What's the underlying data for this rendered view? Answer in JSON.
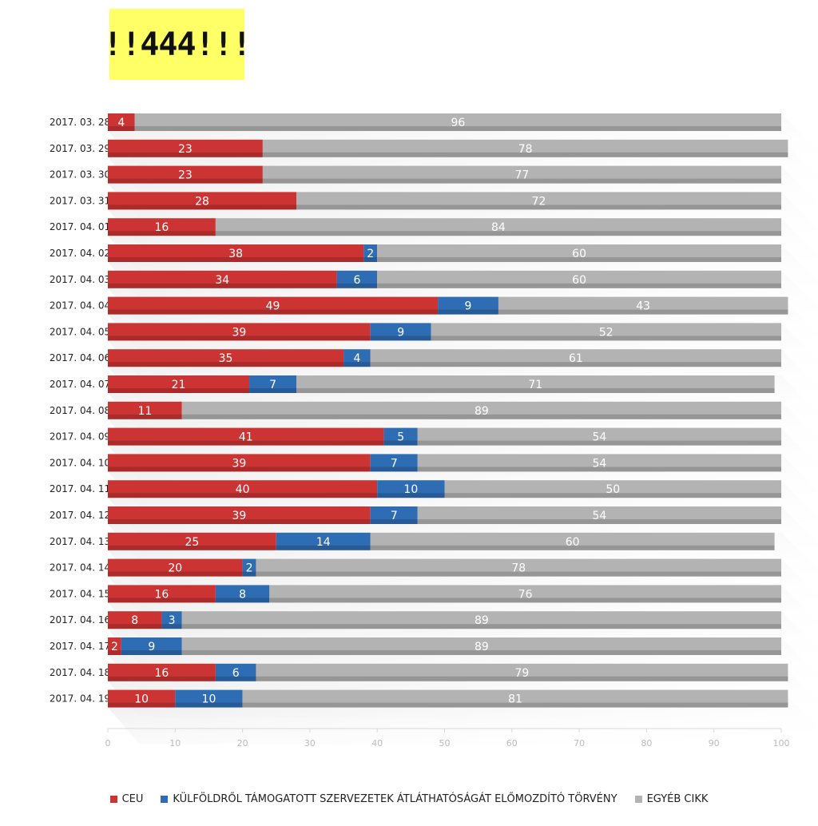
{
  "logo": {
    "text": "!!444!!!"
  },
  "colors": {
    "ceu": "#cc3333",
    "law": "#2e6db4",
    "other": "#b3b3b3"
  },
  "legend": [
    {
      "label": "CEU",
      "color": "#cc3333"
    },
    {
      "label": "KÜLFÖLDRŐL TÁMOGATOTT SZERVEZETEK ÁTLÁTHATÓSÁGÁT ELŐMOZDÍTÓ TÖRVÉNY",
      "color": "#2e6db4"
    },
    {
      "label": "EGYÉB CIKK",
      "color": "#b3b3b3"
    }
  ],
  "chart_data": {
    "type": "bar",
    "orientation": "horizontal",
    "stacked": true,
    "categories": [
      "2017. 03. 28.",
      "2017. 03. 29.",
      "2017. 03. 30.",
      "2017. 03. 31.",
      "2017. 04. 01.",
      "2017. 04. 02.",
      "2017. 04. 03.",
      "2017. 04. 04.",
      "2017. 04. 05.",
      "2017. 04. 06.",
      "2017. 04. 07.",
      "2017. 04. 08.",
      "2017. 04. 09.",
      "2017. 04. 10.",
      "2017. 04. 11.",
      "2017. 04. 12.",
      "2017. 04. 13.",
      "2017. 04. 14.",
      "2017. 04. 15.",
      "2017. 04. 16.",
      "2017. 04. 17.",
      "2017. 04. 18.",
      "2017. 04. 19."
    ],
    "series": [
      {
        "name": "CEU",
        "values": [
          4,
          23,
          23,
          28,
          16,
          38,
          34,
          49,
          39,
          35,
          21,
          11,
          41,
          39,
          40,
          39,
          25,
          20,
          16,
          8,
          2,
          16,
          10
        ]
      },
      {
        "name": "KÜLFÖLDRŐL TÁMOGATOTT SZERVEZETEK ÁTLÁTHATÓSÁGÁT ELŐMOZDÍTÓ TÖRVÉNY",
        "values": [
          0,
          0,
          0,
          0,
          0,
          2,
          6,
          9,
          9,
          4,
          7,
          0,
          5,
          7,
          10,
          7,
          14,
          2,
          8,
          3,
          9,
          6,
          10
        ]
      },
      {
        "name": "EGYÉB CIKK",
        "values": [
          96,
          78,
          77,
          72,
          84,
          60,
          60,
          43,
          52,
          61,
          71,
          89,
          54,
          54,
          50,
          54,
          60,
          78,
          76,
          89,
          89,
          79,
          81
        ]
      }
    ],
    "xlim": [
      0,
      100
    ],
    "xticks": [
      0,
      10,
      20,
      30,
      40,
      50,
      60,
      70,
      80,
      90,
      100
    ],
    "grid": false,
    "legend_position": "bottom"
  }
}
